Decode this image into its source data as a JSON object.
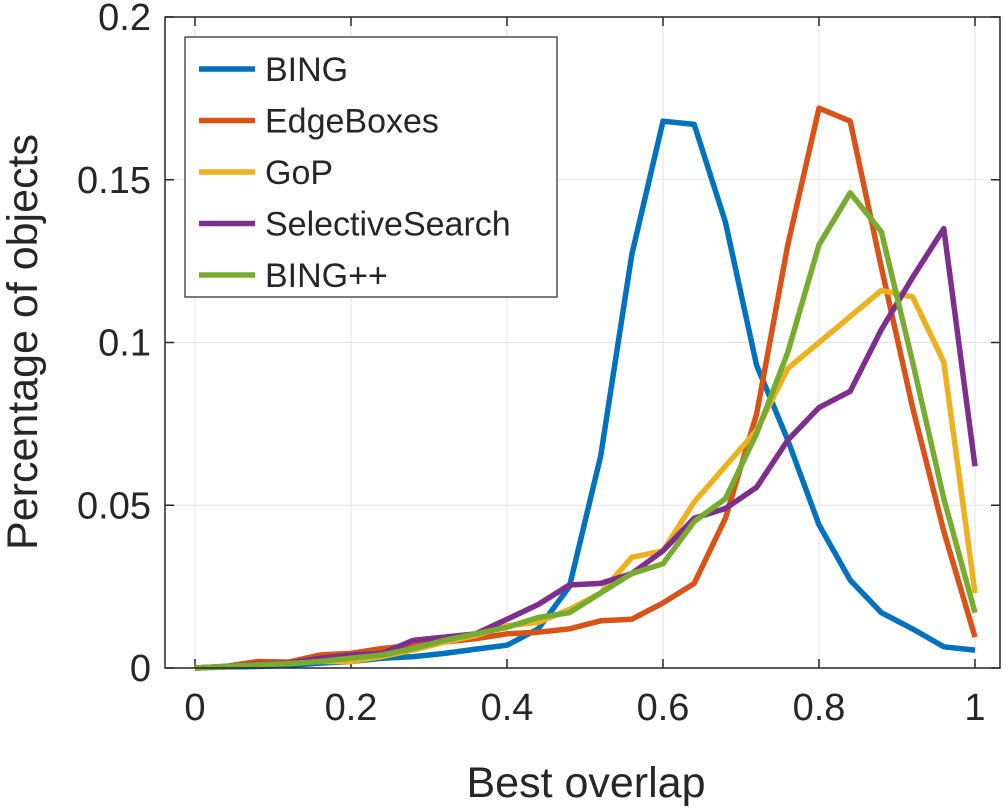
{
  "chart_data": {
    "type": "line",
    "title": "",
    "xlabel": "Best overlap",
    "ylabel": "Percentage of objects",
    "xlim": [
      0,
      1
    ],
    "ylim": [
      0,
      0.2
    ],
    "x_ticks": [
      0,
      0.2,
      0.4,
      0.6,
      0.8,
      1
    ],
    "x_tick_labels": [
      "0",
      "0.2",
      "0.4",
      "0.6",
      "0.8",
      "1"
    ],
    "y_ticks": [
      0,
      0.05,
      0.1,
      0.15,
      0.2
    ],
    "y_tick_labels": [
      "0",
      "0.05",
      "0.1",
      "0.15",
      "0.2"
    ],
    "grid": true,
    "legend_position": "top-left",
    "x": [
      0,
      0.04,
      0.08,
      0.12,
      0.16,
      0.2,
      0.24,
      0.28,
      0.32,
      0.36,
      0.4,
      0.44,
      0.48,
      0.52,
      0.56,
      0.6,
      0.64,
      0.68,
      0.72,
      0.76,
      0.8,
      0.84,
      0.88,
      0.92,
      0.96,
      1
    ],
    "series": [
      {
        "name": "BING",
        "color": "#0072bd",
        "values": [
          0,
          0.0003,
          0.0005,
          0.0008,
          0.0015,
          0.002,
          0.003,
          0.0035,
          0.0045,
          0.0058,
          0.007,
          0.012,
          0.025,
          0.065,
          0.127,
          0.168,
          0.167,
          0.137,
          0.093,
          0.07,
          0.044,
          0.027,
          0.017,
          0.012,
          0.0065,
          0.0055
        ]
      },
      {
        "name": "EdgeBoxes",
        "color": "#d95319",
        "values": [
          0,
          0.0005,
          0.002,
          0.0018,
          0.004,
          0.0045,
          0.006,
          0.007,
          0.008,
          0.009,
          0.0105,
          0.011,
          0.012,
          0.0145,
          0.015,
          0.02,
          0.026,
          0.046,
          0.078,
          0.13,
          0.172,
          0.168,
          0.123,
          0.08,
          0.042,
          0.0095
        ]
      },
      {
        "name": "GoP",
        "color": "#edb120",
        "values": [
          0,
          0.0004,
          0.001,
          0.0015,
          0.002,
          0.002,
          0.0035,
          0.0055,
          0.008,
          0.01,
          0.013,
          0.014,
          0.018,
          0.023,
          0.034,
          0.036,
          0.051,
          0.062,
          0.073,
          0.092,
          0.1,
          0.108,
          0.116,
          0.114,
          0.094,
          0.023
        ]
      },
      {
        "name": "SelectiveSearch",
        "color": "#7e2f8e",
        "values": [
          0,
          0.0005,
          0.0012,
          0.0015,
          0.003,
          0.004,
          0.0045,
          0.0085,
          0.0095,
          0.0105,
          0.015,
          0.0195,
          0.0255,
          0.026,
          0.029,
          0.036,
          0.046,
          0.049,
          0.0555,
          0.07,
          0.08,
          0.085,
          0.104,
          0.12,
          0.135,
          0.062
        ]
      },
      {
        "name": "BING++",
        "color": "#77ac30",
        "values": [
          0,
          0.0005,
          0.001,
          0.0013,
          0.002,
          0.003,
          0.004,
          0.006,
          0.0085,
          0.0105,
          0.0125,
          0.0155,
          0.017,
          0.023,
          0.029,
          0.032,
          0.045,
          0.052,
          0.072,
          0.097,
          0.13,
          0.146,
          0.134,
          0.094,
          0.052,
          0.017
        ]
      }
    ]
  }
}
